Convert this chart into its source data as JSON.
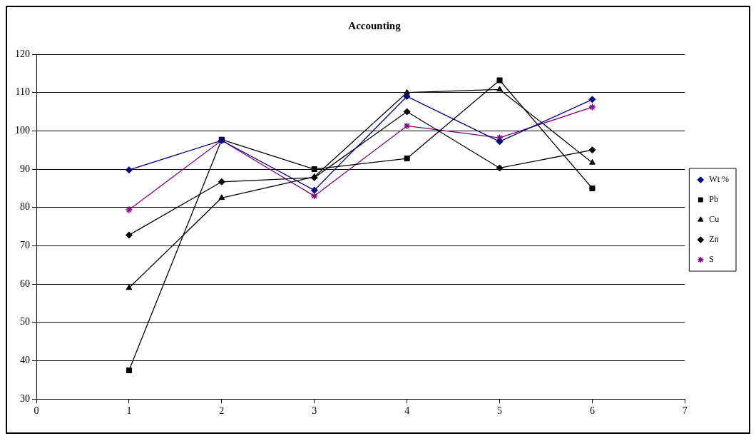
{
  "chart_data": {
    "type": "line",
    "title": "Accounting",
    "x": [
      1,
      2,
      3,
      4,
      5,
      6
    ],
    "xlim": [
      0,
      7
    ],
    "xticks": [
      0,
      1,
      2,
      3,
      4,
      5,
      6,
      7
    ],
    "ylim": [
      30,
      120
    ],
    "yticks": [
      30,
      40,
      50,
      60,
      70,
      80,
      90,
      100,
      110,
      120
    ],
    "grid": "y",
    "legend": "right",
    "line_style": "solid",
    "series": [
      {
        "name": "Wt %",
        "color": "#000080",
        "marker": "diamond",
        "values": [
          89.8,
          97.5,
          84.5,
          109,
          97.2,
          108.2
        ]
      },
      {
        "name": "Pb",
        "color": "#000000",
        "marker": "square",
        "values": [
          37.5,
          97.7,
          90,
          92.8,
          113.2,
          85
        ]
      },
      {
        "name": "Cu",
        "color": "#000000",
        "marker": "triangle",
        "values": [
          59,
          82.5,
          88,
          110,
          110.8,
          91.7
        ]
      },
      {
        "name": "Zn",
        "color": "#000000",
        "marker": "diamond",
        "values": [
          72.8,
          86.7,
          87.8,
          105,
          90.3,
          95
        ]
      },
      {
        "name": "S",
        "color": "#800080",
        "marker": "cross",
        "values": [
          79.4,
          97.5,
          83,
          101.3,
          98.2,
          106.2
        ]
      }
    ]
  }
}
